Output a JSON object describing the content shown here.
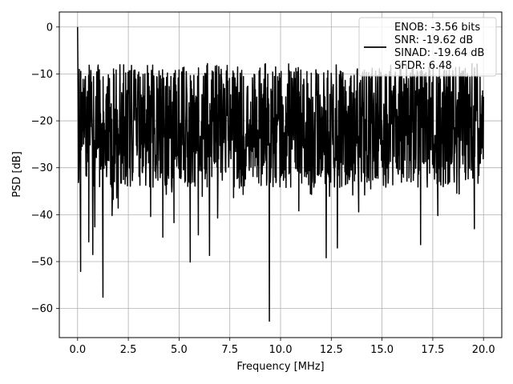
{
  "chart_data": {
    "type": "line",
    "xlabel": "Frequency [MHz]",
    "ylabel": "PSD [dB]",
    "xlim": [
      -0.9,
      20.9
    ],
    "ylim": [
      -66.2,
      3.2
    ],
    "x_ticks": [
      0.0,
      2.5,
      5.0,
      7.5,
      10.0,
      12.5,
      15.0,
      17.5,
      20.0
    ],
    "x_tick_labels": [
      "0.0",
      "2.5",
      "5.0",
      "7.5",
      "10.0",
      "12.5",
      "15.0",
      "17.5",
      "20.0"
    ],
    "y_ticks": [
      0,
      -10,
      -20,
      -30,
      -40,
      -50,
      -60
    ],
    "y_tick_labels": [
      "0",
      "−10",
      "−20",
      "−30",
      "−40",
      "−50",
      "−60"
    ],
    "grid": true,
    "legend_position": "top-right",
    "legend_entries": [
      "ENOB: -3.56 bits",
      "SNR: -19.62 dB",
      "SINAD: -19.64 dB",
      "SFDR: 6.48"
    ],
    "series_color": "#000000",
    "series": [
      {
        "x_range": [
          0.0,
          20.0
        ],
        "peak": {
          "x": 0.0,
          "y": 0.0
        },
        "noise_band": {
          "upper_y": -11,
          "mean_y": -21,
          "lower_y": -34
        },
        "notable_dips": [
          {
            "x": 0.15,
            "y": -52.1
          },
          {
            "x": 0.55,
            "y": -45.8
          },
          {
            "x": 0.75,
            "y": -48.5
          },
          {
            "x": 0.85,
            "y": -42.6
          },
          {
            "x": 1.25,
            "y": -57.6
          },
          {
            "x": 1.7,
            "y": -40.2
          },
          {
            "x": 2.0,
            "y": -38.6
          },
          {
            "x": 3.6,
            "y": -40.4
          },
          {
            "x": 4.2,
            "y": -44.8
          },
          {
            "x": 4.75,
            "y": -41.7
          },
          {
            "x": 5.55,
            "y": -50.1
          },
          {
            "x": 5.95,
            "y": -44.3
          },
          {
            "x": 6.5,
            "y": -48.7
          },
          {
            "x": 6.9,
            "y": -40.7
          },
          {
            "x": 9.45,
            "y": -62.7
          },
          {
            "x": 10.9,
            "y": -39.2
          },
          {
            "x": 12.25,
            "y": -49.2
          },
          {
            "x": 12.8,
            "y": -47.1
          },
          {
            "x": 13.85,
            "y": -39.4
          },
          {
            "x": 16.9,
            "y": -46.4
          },
          {
            "x": 17.75,
            "y": -40.2
          },
          {
            "x": 19.55,
            "y": -43.0
          }
        ]
      }
    ]
  }
}
